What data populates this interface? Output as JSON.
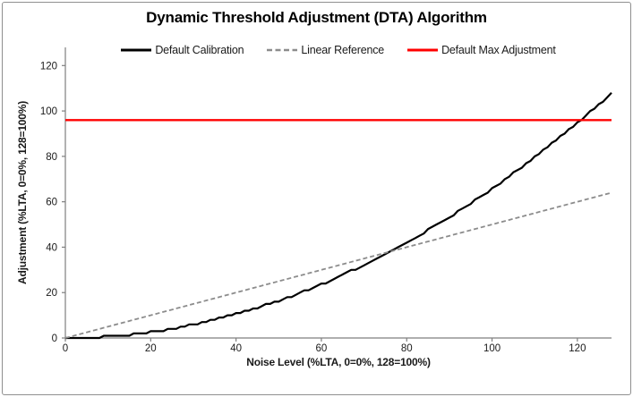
{
  "frame": {
    "background": "#ffffff",
    "border_color": "#8f8f8f"
  },
  "chart_data": {
    "type": "line",
    "title": "Dynamic Threshold Adjustment (DTA) Algorithm",
    "xlabel": "Noise Level (%LTA, 0=0%, 128=100%)",
    "ylabel": "Adjustment (%LTA, 0=0%, 128=100%)",
    "xlim": [
      0,
      128
    ],
    "ylim": [
      0,
      128
    ],
    "xticks": [
      0,
      20,
      40,
      60,
      80,
      100,
      120
    ],
    "yticks": [
      0,
      20,
      40,
      60,
      80,
      100,
      120
    ],
    "grid": false,
    "legend_position": "top-center",
    "axis_color": "#7f7f7f",
    "text_color": "#1a1a1a",
    "series": [
      {
        "name": "Default Calibration",
        "color": "#000000",
        "style": "solid",
        "width": 2.2,
        "x_start": 0,
        "x_step": 1,
        "y_values": [
          0,
          0,
          0,
          0,
          0,
          0,
          0,
          0,
          0,
          1,
          1,
          1,
          1,
          1,
          1,
          1,
          2,
          2,
          2,
          2,
          3,
          3,
          3,
          3,
          4,
          4,
          4,
          5,
          5,
          6,
          6,
          6,
          7,
          7,
          8,
          8,
          9,
          9,
          10,
          10,
          11,
          11,
          12,
          12,
          13,
          13,
          14,
          15,
          15,
          16,
          16,
          17,
          18,
          18,
          19,
          20,
          21,
          21,
          22,
          23,
          24,
          24,
          25,
          26,
          27,
          28,
          29,
          30,
          30,
          31,
          32,
          33,
          34,
          35,
          36,
          37,
          38,
          39,
          40,
          41,
          42,
          43,
          44,
          45,
          46,
          48,
          49,
          50,
          51,
          52,
          53,
          54,
          56,
          57,
          58,
          59,
          61,
          62,
          63,
          64,
          66,
          67,
          68,
          70,
          71,
          73,
          74,
          75,
          77,
          78,
          80,
          81,
          83,
          84,
          86,
          87,
          89,
          90,
          92,
          93,
          95,
          96,
          98,
          100,
          101,
          103,
          104,
          106,
          108
        ]
      },
      {
        "name": "Linear Reference",
        "color": "#8c8c8c",
        "style": "dashed",
        "width": 1.8,
        "points": [
          [
            0,
            0
          ],
          [
            128,
            64
          ]
        ]
      },
      {
        "name": "Default Max Adjustment",
        "color": "#ff0000",
        "style": "solid",
        "width": 2.4,
        "points": [
          [
            0,
            96
          ],
          [
            128,
            96
          ]
        ]
      }
    ]
  }
}
